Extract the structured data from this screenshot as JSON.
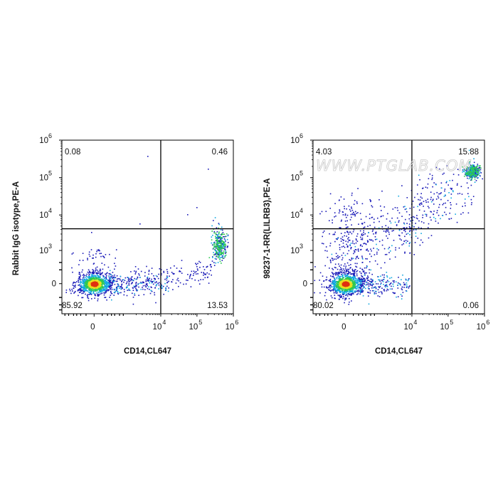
{
  "watermark": "WWW.PTGLAB.COM",
  "colors": {
    "density_low": "#1a1ab8",
    "density_mid_low": "#10a8e0",
    "density_mid": "#2ec850",
    "density_mid_high": "#e8e020",
    "density_high": "#e03010",
    "gate_line": "#000000"
  },
  "chart_data": [
    {
      "type": "scatter",
      "title": "",
      "xlabel": "CD14,CL647",
      "ylabel": "Rabbit IgG isotype,PE-A",
      "x_scale": "biexponential",
      "y_scale": "biexponential",
      "xlim": [
        -1000,
        1000000
      ],
      "ylim": [
        -800,
        1000000
      ],
      "x_ticks": [
        {
          "value": 0,
          "label": "0",
          "exp": ""
        },
        {
          "value": 10000,
          "label": "10",
          "exp": "4"
        },
        {
          "value": 100000,
          "label": "10",
          "exp": "5"
        },
        {
          "value": 1000000,
          "label": "10",
          "exp": "6"
        }
      ],
      "y_ticks": [
        {
          "value": 0,
          "label": "0",
          "exp": ""
        },
        {
          "value": 1000,
          "label": "10",
          "exp": "3"
        },
        {
          "value": 10000,
          "label": "10",
          "exp": "4"
        },
        {
          "value": 100000,
          "label": "10",
          "exp": "5"
        },
        {
          "value": 1000000,
          "label": "10",
          "exp": "6"
        }
      ],
      "gate": {
        "x": 10000,
        "y": 4200
      },
      "quadrants": {
        "upper_left": "0.08",
        "upper_right": "0.46",
        "lower_left": "85.92",
        "lower_right": "13.53"
      },
      "populations": [
        {
          "name": "",
          "x_center": 0,
          "y_center": 0,
          "x_spread": 320,
          "y_spread": 260,
          "percent": 85.92
        },
        {
          "name": "",
          "x_center": 400000,
          "y_center": 1500,
          "x_spread": 0.12,
          "y_spread": 0.22,
          "percent": 13.53
        }
      ]
    },
    {
      "type": "scatter",
      "title": "",
      "xlabel": "CD14,CL647",
      "ylabel": "98237-1-RR(LILRB3),PE-A",
      "x_scale": "biexponential",
      "y_scale": "biexponential",
      "xlim": [
        -1000,
        1000000
      ],
      "ylim": [
        -800,
        1000000
      ],
      "x_ticks": [
        {
          "value": 0,
          "label": "0",
          "exp": ""
        },
        {
          "value": 10000,
          "label": "10",
          "exp": "4"
        },
        {
          "value": 100000,
          "label": "10",
          "exp": "5"
        },
        {
          "value": 1000000,
          "label": "10",
          "exp": "6"
        }
      ],
      "y_ticks": [
        {
          "value": 0,
          "label": "0",
          "exp": ""
        },
        {
          "value": 1000,
          "label": "10",
          "exp": "3"
        },
        {
          "value": 10000,
          "label": "10",
          "exp": "4"
        },
        {
          "value": 100000,
          "label": "10",
          "exp": "5"
        },
        {
          "value": 1000000,
          "label": "10",
          "exp": "6"
        }
      ],
      "gate": {
        "x": 10000,
        "y": 4200
      },
      "quadrants": {
        "upper_left": "4.03",
        "upper_right": "15.88",
        "lower_left": "80.02",
        "lower_right": "0.06"
      },
      "populations": [
        {
          "name": "",
          "x_center": 0,
          "y_center": 0,
          "x_spread": 320,
          "y_spread": 300,
          "percent": 80.02
        },
        {
          "name": "",
          "x_center": 450000,
          "y_center": 150000,
          "x_spread": 0.12,
          "y_spread": 0.12,
          "percent": 15.88
        }
      ]
    }
  ]
}
